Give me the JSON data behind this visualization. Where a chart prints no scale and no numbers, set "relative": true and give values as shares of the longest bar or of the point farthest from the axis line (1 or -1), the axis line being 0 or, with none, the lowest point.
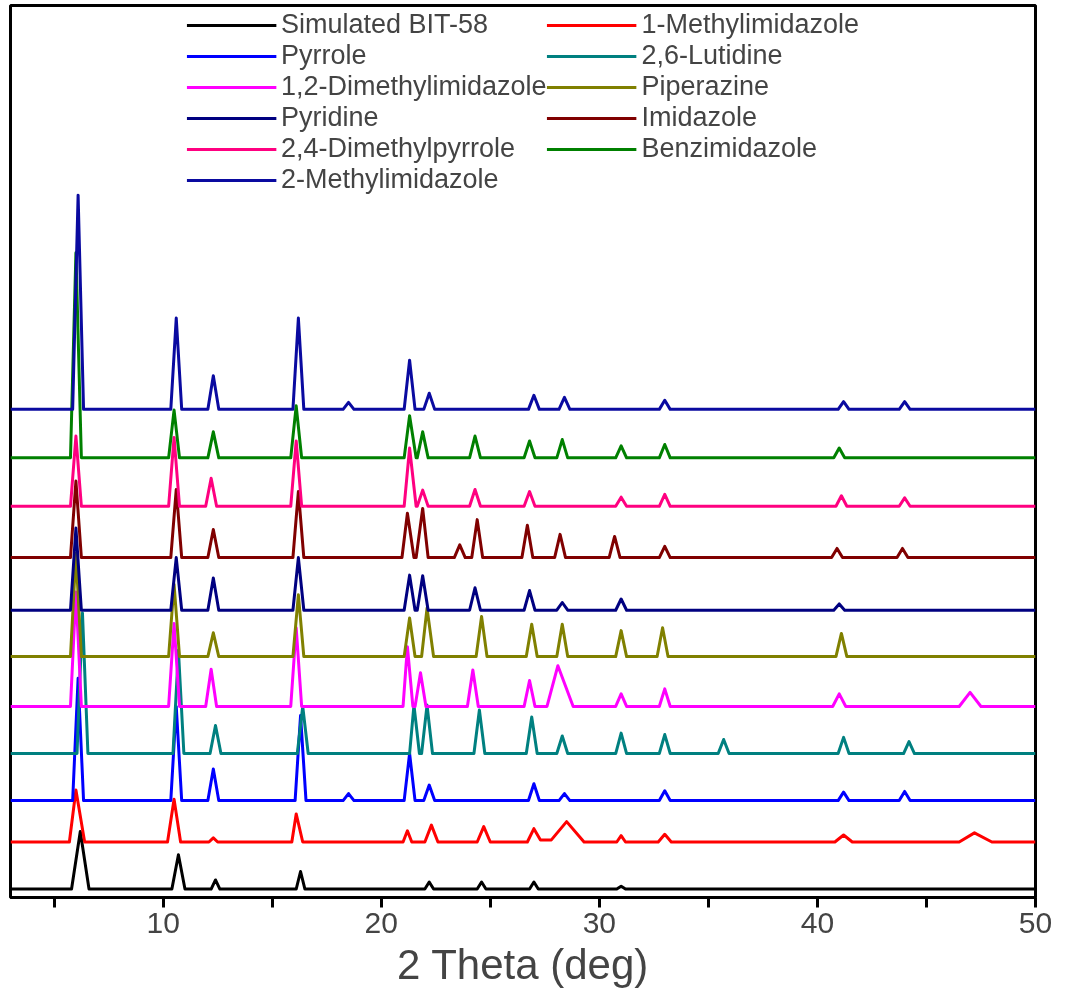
{
  "chart_data": {
    "type": "line",
    "relative": true,
    "xlabel": "2 Theta (deg)",
    "xlim": [
      3,
      50
    ],
    "xticks": [
      {
        "value": 5,
        "label": null
      },
      10,
      {
        "value": 15,
        "label": null
      },
      20,
      {
        "value": 25,
        "label": null
      },
      30,
      {
        "value": 35,
        "label": null
      },
      40,
      {
        "value": 45,
        "label": null
      },
      50
    ],
    "legend": "top",
    "grid": false,
    "marker": "none",
    "line_style": "solid",
    "series": [
      {
        "name": "Simulated BIT-58",
        "color": "#000000",
        "x": [
          3,
          5.8,
          6.2,
          6.6,
          10.4,
          10.7,
          11.0,
          12.2,
          12.4,
          12.6,
          16.1,
          16.3,
          16.5,
          22.0,
          22.2,
          22.4,
          24.4,
          24.6,
          24.8,
          26.8,
          27.0,
          27.2,
          30.8,
          31.0,
          31.2,
          50
        ],
        "values": [
          0.012,
          0.012,
          0.094,
          0.012,
          0.012,
          0.061,
          0.012,
          0.012,
          0.025,
          0.012,
          0.012,
          0.037,
          0.012,
          0.012,
          0.022,
          0.012,
          0.012,
          0.022,
          0.012,
          0.012,
          0.022,
          0.012,
          0.012,
          0.016,
          0.012,
          0.012
        ]
      },
      {
        "name": "1-Methylimidazole",
        "color": "#ff0000",
        "x": [
          3,
          5.7,
          6.0,
          6.4,
          10.2,
          10.5,
          10.8,
          12.1,
          12.3,
          12.5,
          15.9,
          16.1,
          16.4,
          21.0,
          21.2,
          21.4,
          22.0,
          22.3,
          22.6,
          24.4,
          24.7,
          25.0,
          26.7,
          27.0,
          27.3,
          27.8,
          28.5,
          29.3,
          30.8,
          31.0,
          31.2,
          32.7,
          33.0,
          33.3,
          40.8,
          41.2,
          41.6,
          46.5,
          47.2,
          48.0,
          50
        ],
        "values": [
          0.079,
          0.079,
          0.153,
          0.079,
          0.079,
          0.14,
          0.079,
          0.079,
          0.085,
          0.079,
          0.079,
          0.119,
          0.079,
          0.079,
          0.095,
          0.079,
          0.079,
          0.103,
          0.079,
          0.079,
          0.101,
          0.079,
          0.079,
          0.098,
          0.082,
          0.082,
          0.108,
          0.079,
          0.079,
          0.088,
          0.079,
          0.079,
          0.09,
          0.079,
          0.079,
          0.089,
          0.079,
          0.079,
          0.092,
          0.079,
          0.079
        ]
      },
      {
        "name": "Pyrrole",
        "color": "#0000ff",
        "x": [
          3,
          5.85,
          6.1,
          6.35,
          10.35,
          10.6,
          10.85,
          12.05,
          12.3,
          12.55,
          16.05,
          16.3,
          16.55,
          18.25,
          18.5,
          18.75,
          21.05,
          21.3,
          21.55,
          21.95,
          22.2,
          22.45,
          26.75,
          27.0,
          27.25,
          28.15,
          28.4,
          28.65,
          32.75,
          33.0,
          33.25,
          40.95,
          41.2,
          41.45,
          43.75,
          44.0,
          44.25,
          50
        ],
        "values": [
          0.138,
          0.138,
          0.312,
          0.138,
          0.138,
          0.272,
          0.138,
          0.138,
          0.183,
          0.138,
          0.138,
          0.259,
          0.138,
          0.138,
          0.148,
          0.138,
          0.138,
          0.205,
          0.138,
          0.138,
          0.16,
          0.138,
          0.138,
          0.162,
          0.138,
          0.138,
          0.148,
          0.138,
          0.138,
          0.152,
          0.138,
          0.138,
          0.15,
          0.138,
          0.138,
          0.151,
          0.138,
          0.138
        ]
      },
      {
        "name": "2,6-Lutidine",
        "color": "#008080",
        "x": [
          3,
          6.05,
          6.3,
          6.55,
          10.45,
          10.7,
          10.95,
          12.15,
          12.4,
          12.65,
          16.15,
          16.4,
          16.65,
          21.3,
          21.5,
          21.75,
          21.85,
          22.1,
          22.35,
          24.25,
          24.5,
          24.75,
          26.65,
          26.9,
          27.15,
          28.05,
          28.3,
          28.55,
          30.75,
          31.0,
          31.25,
          32.75,
          33.0,
          33.25,
          35.45,
          35.7,
          35.95,
          40.95,
          41.2,
          41.45,
          43.95,
          44.2,
          44.45,
          50
        ],
        "values": [
          0.205,
          0.205,
          0.405,
          0.205,
          0.205,
          0.352,
          0.205,
          0.205,
          0.245,
          0.205,
          0.205,
          0.272,
          0.205,
          0.205,
          0.274,
          0.205,
          0.205,
          0.274,
          0.205,
          0.205,
          0.267,
          0.205,
          0.205,
          0.257,
          0.205,
          0.205,
          0.23,
          0.205,
          0.205,
          0.234,
          0.205,
          0.205,
          0.232,
          0.205,
          0.205,
          0.225,
          0.205,
          0.205,
          0.228,
          0.205,
          0.205,
          0.222,
          0.205,
          0.205
        ]
      },
      {
        "name": "1,2-Dimethylimidazole",
        "color": "#ff00ff",
        "x": [
          3,
          5.75,
          6.0,
          6.25,
          10.25,
          10.5,
          10.75,
          11.95,
          12.2,
          12.45,
          15.85,
          16.1,
          16.35,
          21.0,
          21.2,
          21.45,
          21.55,
          21.8,
          22.05,
          23.95,
          24.2,
          24.45,
          26.55,
          26.8,
          27.05,
          27.6,
          28.1,
          28.8,
          30.75,
          31.0,
          31.25,
          32.75,
          33.0,
          33.25,
          40.7,
          41.0,
          41.3,
          46.5,
          47.0,
          47.5,
          50
        ],
        "values": [
          0.272,
          0.272,
          0.435,
          0.272,
          0.272,
          0.39,
          0.272,
          0.272,
          0.325,
          0.272,
          0.272,
          0.384,
          0.272,
          0.272,
          0.357,
          0.272,
          0.272,
          0.32,
          0.272,
          0.272,
          0.324,
          0.272,
          0.272,
          0.309,
          0.272,
          0.272,
          0.33,
          0.272,
          0.272,
          0.29,
          0.272,
          0.272,
          0.297,
          0.272,
          0.272,
          0.29,
          0.272,
          0.272,
          0.292,
          0.272,
          0.272
        ]
      },
      {
        "name": "Piperazine",
        "color": "#808000",
        "x": [
          3,
          5.75,
          6.0,
          6.25,
          10.25,
          10.5,
          10.75,
          12.05,
          12.3,
          12.55,
          15.95,
          16.2,
          16.45,
          21.05,
          21.3,
          21.55,
          21.85,
          22.1,
          22.4,
          24.35,
          24.6,
          24.85,
          26.65,
          26.9,
          27.15,
          28.05,
          28.3,
          28.55,
          30.75,
          31.0,
          31.25,
          32.65,
          32.9,
          33.15,
          40.85,
          41.1,
          41.35,
          50
        ],
        "values": [
          0.343,
          0.343,
          0.49,
          0.343,
          0.343,
          0.446,
          0.343,
          0.343,
          0.377,
          0.343,
          0.343,
          0.431,
          0.343,
          0.343,
          0.398,
          0.343,
          0.343,
          0.412,
          0.343,
          0.343,
          0.4,
          0.343,
          0.343,
          0.389,
          0.343,
          0.343,
          0.389,
          0.343,
          0.343,
          0.38,
          0.343,
          0.343,
          0.384,
          0.343,
          0.343,
          0.376,
          0.343,
          0.343
        ]
      },
      {
        "name": "Pyridine",
        "color": "#000080",
        "x": [
          3,
          5.75,
          6.0,
          6.25,
          10.35,
          10.6,
          10.85,
          12.05,
          12.3,
          12.55,
          15.95,
          16.2,
          16.45,
          21.05,
          21.3,
          21.55,
          21.65,
          21.9,
          22.15,
          24.05,
          24.3,
          24.55,
          26.55,
          26.8,
          27.05,
          28.05,
          28.3,
          28.55,
          30.75,
          31.0,
          31.25,
          40.75,
          41.0,
          41.25,
          50
        ],
        "values": [
          0.409,
          0.409,
          0.526,
          0.409,
          0.409,
          0.484,
          0.409,
          0.409,
          0.455,
          0.409,
          0.409,
          0.484,
          0.409,
          0.409,
          0.459,
          0.409,
          0.409,
          0.458,
          0.409,
          0.409,
          0.441,
          0.409,
          0.409,
          0.437,
          0.409,
          0.409,
          0.42,
          0.409,
          0.409,
          0.425,
          0.409,
          0.409,
          0.418,
          0.409,
          0.409
        ]
      },
      {
        "name": "Imidazole",
        "color": "#800000",
        "x": [
          3,
          5.75,
          6.0,
          6.25,
          10.35,
          10.6,
          10.85,
          12.05,
          12.3,
          12.55,
          15.95,
          16.2,
          16.45,
          20.95,
          21.2,
          21.5,
          21.6,
          21.9,
          22.15,
          23.35,
          23.6,
          23.85,
          24.15,
          24.4,
          24.65,
          26.45,
          26.7,
          26.95,
          27.95,
          28.2,
          28.45,
          30.45,
          30.7,
          30.95,
          32.75,
          33.0,
          33.25,
          40.65,
          40.9,
          41.15,
          43.65,
          43.9,
          44.15,
          50
        ],
        "values": [
          0.484,
          0.484,
          0.593,
          0.484,
          0.484,
          0.581,
          0.484,
          0.484,
          0.524,
          0.484,
          0.484,
          0.578,
          0.484,
          0.484,
          0.547,
          0.484,
          0.484,
          0.554,
          0.484,
          0.484,
          0.502,
          0.484,
          0.484,
          0.538,
          0.484,
          0.484,
          0.53,
          0.484,
          0.484,
          0.517,
          0.484,
          0.484,
          0.514,
          0.484,
          0.484,
          0.5,
          0.484,
          0.484,
          0.497,
          0.484,
          0.484,
          0.497,
          0.484,
          0.484
        ]
      },
      {
        "name": "2,4-Dimethylpyrrole",
        "color": "#ff0080",
        "x": [
          3,
          5.75,
          6.0,
          6.25,
          10.25,
          10.5,
          10.75,
          11.95,
          12.2,
          12.45,
          15.85,
          16.1,
          16.35,
          21.05,
          21.3,
          21.6,
          21.65,
          21.9,
          22.15,
          24.05,
          24.3,
          24.55,
          26.55,
          26.8,
          27.05,
          30.75,
          31.0,
          31.25,
          32.75,
          33.0,
          33.25,
          40.85,
          41.1,
          41.35,
          43.75,
          44.0,
          44.25,
          50
        ],
        "values": [
          0.557,
          0.557,
          0.657,
          0.557,
          0.557,
          0.655,
          0.557,
          0.557,
          0.597,
          0.557,
          0.557,
          0.65,
          0.557,
          0.557,
          0.64,
          0.557,
          0.557,
          0.58,
          0.557,
          0.557,
          0.581,
          0.557,
          0.557,
          0.578,
          0.557,
          0.557,
          0.57,
          0.557,
          0.557,
          0.574,
          0.557,
          0.557,
          0.572,
          0.557,
          0.557,
          0.569,
          0.557,
          0.557
        ]
      },
      {
        "name": "Benzimidazole",
        "color": "#008000",
        "x": [
          3,
          5.75,
          6.0,
          6.25,
          10.25,
          10.5,
          10.75,
          12.05,
          12.3,
          12.55,
          15.85,
          16.1,
          16.35,
          21.05,
          21.3,
          21.6,
          21.65,
          21.9,
          22.15,
          24.05,
          24.3,
          24.55,
          26.55,
          26.8,
          27.05,
          28.05,
          28.3,
          28.55,
          30.75,
          31.0,
          31.25,
          32.75,
          33.0,
          33.25,
          40.75,
          41.0,
          41.25,
          50
        ],
        "values": [
          0.626,
          0.626,
          0.918,
          0.626,
          0.626,
          0.694,
          0.626,
          0.626,
          0.663,
          0.626,
          0.626,
          0.7,
          0.626,
          0.626,
          0.686,
          0.626,
          0.626,
          0.663,
          0.626,
          0.626,
          0.657,
          0.626,
          0.626,
          0.65,
          0.626,
          0.626,
          0.652,
          0.626,
          0.626,
          0.643,
          0.626,
          0.626,
          0.645,
          0.626,
          0.626,
          0.64,
          0.626,
          0.626
        ]
      },
      {
        "name": "2-Methylimidazole",
        "color": "#0a0aa0",
        "x": [
          3,
          5.85,
          6.1,
          6.35,
          10.35,
          10.6,
          10.85,
          12.05,
          12.3,
          12.55,
          15.95,
          16.2,
          16.45,
          18.25,
          18.5,
          18.75,
          21.05,
          21.3,
          21.55,
          21.95,
          22.2,
          22.45,
          26.75,
          27.0,
          27.25,
          28.15,
          28.4,
          28.65,
          32.75,
          33.0,
          33.25,
          40.95,
          41.2,
          41.45,
          43.75,
          44.0,
          44.25,
          50
        ],
        "values": [
          0.695,
          0.695,
          1.0,
          0.695,
          0.695,
          0.825,
          0.695,
          0.695,
          0.743,
          0.695,
          0.695,
          0.825,
          0.695,
          0.695,
          0.705,
          0.695,
          0.695,
          0.765,
          0.695,
          0.695,
          0.718,
          0.695,
          0.695,
          0.715,
          0.695,
          0.695,
          0.712,
          0.695,
          0.695,
          0.708,
          0.695,
          0.695,
          0.706,
          0.695,
          0.695,
          0.706,
          0.695,
          0.695
        ]
      }
    ]
  }
}
